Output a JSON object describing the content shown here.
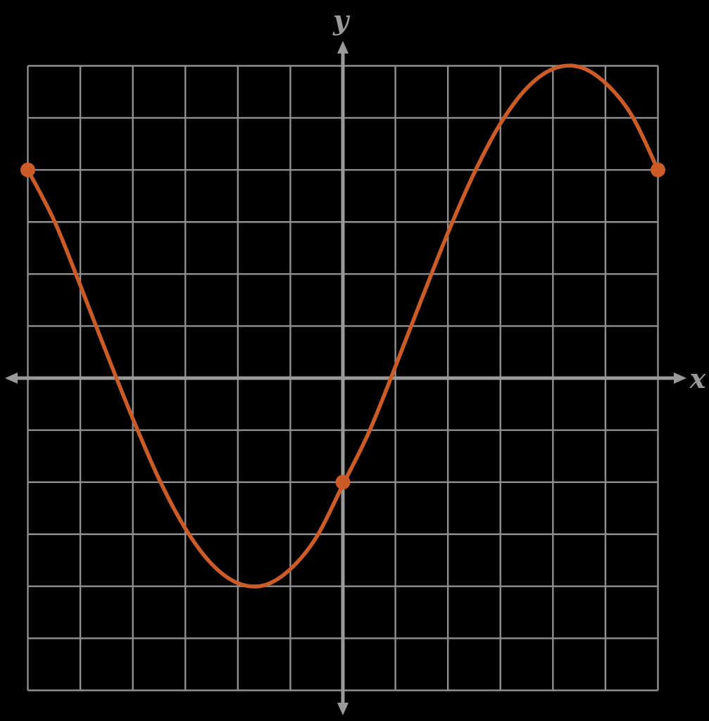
{
  "chart_data": {
    "type": "line",
    "title": "",
    "xlabel": "x",
    "ylabel": "y",
    "xlim": [
      -6,
      6
    ],
    "ylim": [
      -6,
      6
    ],
    "grid": true,
    "grid_step": 1,
    "legend": false,
    "series": [
      {
        "name": "sinusoidal-curve",
        "color": "#cb5c28",
        "points": [
          [
            -6,
            4
          ],
          [
            -5.5,
            3.03
          ],
          [
            -5,
            1.78
          ],
          [
            -4.5,
            0.48
          ],
          [
            -4,
            -0.78
          ],
          [
            -3.5,
            -1.94
          ],
          [
            -3,
            -2.89
          ],
          [
            -2.5,
            -3.57
          ],
          [
            -2,
            -3.94
          ],
          [
            -1.5,
            -3.98
          ],
          [
            -1,
            -3.67
          ],
          [
            -0.5,
            -3.05
          ],
          [
            0,
            -2.05
          ],
          [
            0.5,
            -1.03
          ],
          [
            1,
            0.22
          ],
          [
            1.5,
            1.52
          ],
          [
            2,
            2.79
          ],
          [
            2.5,
            3.94
          ],
          [
            3,
            4.89
          ],
          [
            3.5,
            5.57
          ],
          [
            4,
            5.94
          ],
          [
            4.5,
            5.98
          ],
          [
            5,
            5.67
          ],
          [
            5.5,
            5.05
          ],
          [
            6,
            4
          ]
        ]
      }
    ],
    "marked_points": [
      {
        "x": -6,
        "y": 4
      },
      {
        "x": 0,
        "y": -2
      },
      {
        "x": 6,
        "y": 4
      }
    ]
  },
  "colors": {
    "background": "#000000",
    "grid": "#8f8f8f",
    "axis": "#9a9a9a",
    "curve": "#cb5c28",
    "point": "#cb5c28",
    "label": "#9a9a9a"
  }
}
